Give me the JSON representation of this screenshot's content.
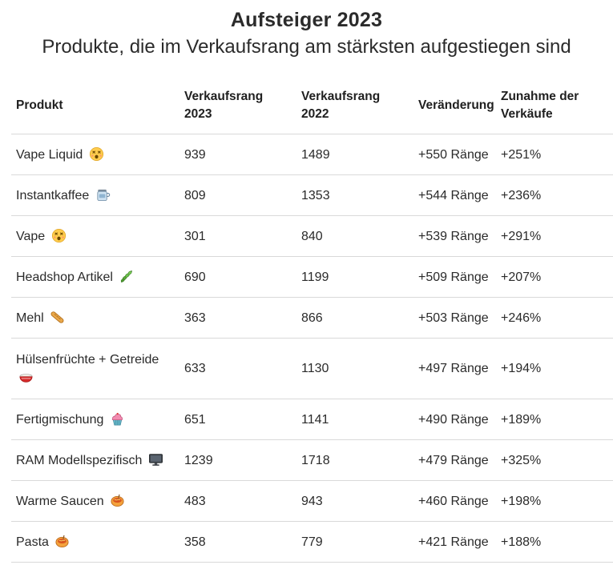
{
  "title": "Aufsteiger 2023",
  "subtitle": "Produkte, die im Verkaufsrang am stärksten aufgestiegen sind",
  "chart_data": {
    "type": "table",
    "title": "Aufsteiger 2023",
    "subtitle": "Produkte, die im Verkaufsrang am stärksten aufgestiegen sind",
    "columns": [
      "Produkt",
      "Verkaufsrang 2023",
      "Verkaufsrang 2022",
      "Veränderung",
      "Zunahme der Verkäufe"
    ],
    "rows": [
      {
        "product": "Vape Liquid",
        "icon": "dizzy-face-icon",
        "rank_2023": "939",
        "rank_2022": "1489",
        "change": "+550 Ränge",
        "increase": "+251%"
      },
      {
        "product": "Instantkaffee",
        "icon": "coffee-jar-icon",
        "rank_2023": "809",
        "rank_2022": "1353",
        "change": "+544 Ränge",
        "increase": "+236%"
      },
      {
        "product": "Vape",
        "icon": "dizzy-face-icon",
        "rank_2023": "301",
        "rank_2022": "840",
        "change": "+539 Ränge",
        "increase": "+291%"
      },
      {
        "product": "Headshop Artikel",
        "icon": "herb-leaf-icon",
        "rank_2023": "690",
        "rank_2022": "1199",
        "change": "+509 Ränge",
        "increase": "+207%"
      },
      {
        "product": "Mehl",
        "icon": "baguette-bread-icon",
        "rank_2023": "363",
        "rank_2022": "866",
        "change": "+503 Ränge",
        "increase": "+246%"
      },
      {
        "product": "Hülsenfrüchte + Getreide",
        "icon": "grain-bowl-icon",
        "rank_2023": "633",
        "rank_2022": "1130",
        "change": "+497 Ränge",
        "increase": "+194%"
      },
      {
        "product": "Fertigmischung",
        "icon": "cupcake-icon",
        "rank_2023": "651",
        "rank_2022": "1141",
        "change": "+490 Ränge",
        "increase": "+189%"
      },
      {
        "product": "RAM Modellspezifisch",
        "icon": "computer-monitor-icon",
        "rank_2023": "1239",
        "rank_2022": "1718",
        "change": "+479 Ränge",
        "increase": "+325%"
      },
      {
        "product": "Warme Saucen",
        "icon": "sauce-jar-icon",
        "rank_2023": "483",
        "rank_2022": "943",
        "change": "+460 Ränge",
        "increase": "+198%"
      },
      {
        "product": "Pasta",
        "icon": "sauce-jar-icon",
        "rank_2023": "358",
        "rank_2022": "779",
        "change": "+421 Ränge",
        "increase": "+188%"
      }
    ]
  }
}
